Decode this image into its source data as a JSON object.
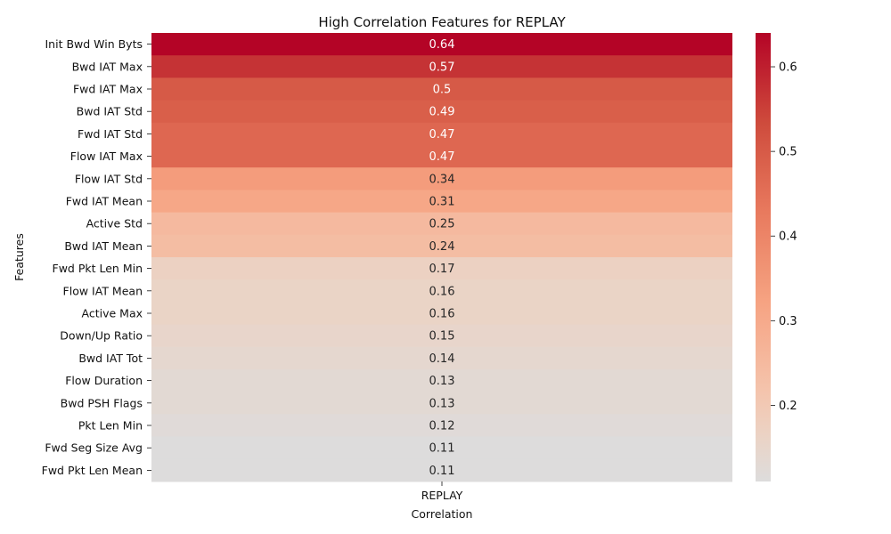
{
  "chart_data": {
    "type": "heatmap",
    "title": "High Correlation Features for REPLAY",
    "xlabel": "Correlation",
    "ylabel": "Features",
    "columns": [
      "REPLAY"
    ],
    "rows": [
      "Init Bwd Win Byts",
      "Bwd IAT Max",
      "Fwd IAT Max",
      "Bwd IAT Std",
      "Fwd IAT Std",
      "Flow IAT Max",
      "Flow IAT Std",
      "Fwd IAT Mean",
      "Active Std",
      "Bwd IAT Mean",
      "Fwd Pkt Len Min",
      "Flow IAT Mean",
      "Active Max",
      "Down/Up Ratio",
      "Bwd IAT Tot",
      "Flow Duration",
      "Bwd PSH Flags",
      "Pkt Len Min",
      "Fwd Seg Size Avg",
      "Fwd Pkt Len Mean"
    ],
    "values": [
      0.64,
      0.57,
      0.5,
      0.49,
      0.47,
      0.47,
      0.34,
      0.31,
      0.25,
      0.24,
      0.17,
      0.16,
      0.16,
      0.15,
      0.14,
      0.13,
      0.13,
      0.12,
      0.11,
      0.11
    ],
    "colormap": "coolwarm",
    "colorbar": {
      "range": [
        0.11,
        0.64
      ],
      "ticks": [
        0.2,
        0.3,
        0.4,
        0.5,
        0.6
      ]
    },
    "grid": false
  }
}
